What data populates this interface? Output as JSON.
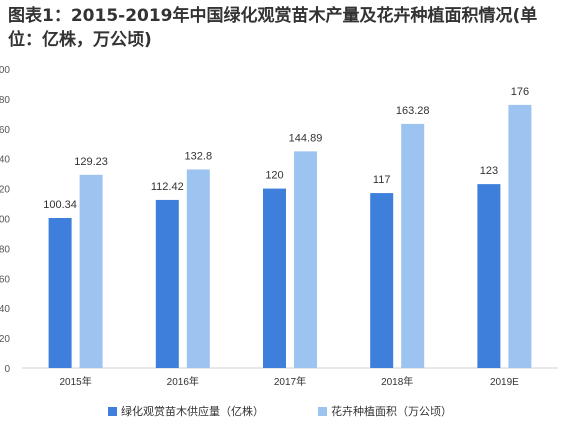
{
  "chart_data": {
    "type": "bar",
    "title": "图表1：2015-2019年中国绿化观赏苗木产量及花卉种植面积情况(单位：亿株，万公顷)",
    "categories": [
      "2015年",
      "2016年",
      "2017年",
      "2018年",
      "2019E"
    ],
    "series": [
      {
        "name": "绿化观赏苗木供应量（亿株）",
        "values": [
          100.34,
          112.42,
          120,
          117,
          123
        ],
        "labels": [
          "100.34",
          "112.42",
          "120",
          "117",
          "123"
        ],
        "color": "#3d7fdb"
      },
      {
        "name": "花卉种植面积（万公顷）",
        "values": [
          129.23,
          132.8,
          144.89,
          163.28,
          176
        ],
        "labels": [
          "129.23",
          "132.8",
          "144.89",
          "163.28",
          "176"
        ],
        "color": "#9dc3f0"
      }
    ],
    "ylim": [
      0,
      200
    ],
    "yticks": [
      "0",
      "20",
      "40",
      "60",
      "80",
      "100",
      "120",
      "140",
      "160",
      "180",
      "200"
    ],
    "grid": false,
    "legend": "bottom"
  },
  "colors": {
    "axis": "#d0d0d0"
  }
}
